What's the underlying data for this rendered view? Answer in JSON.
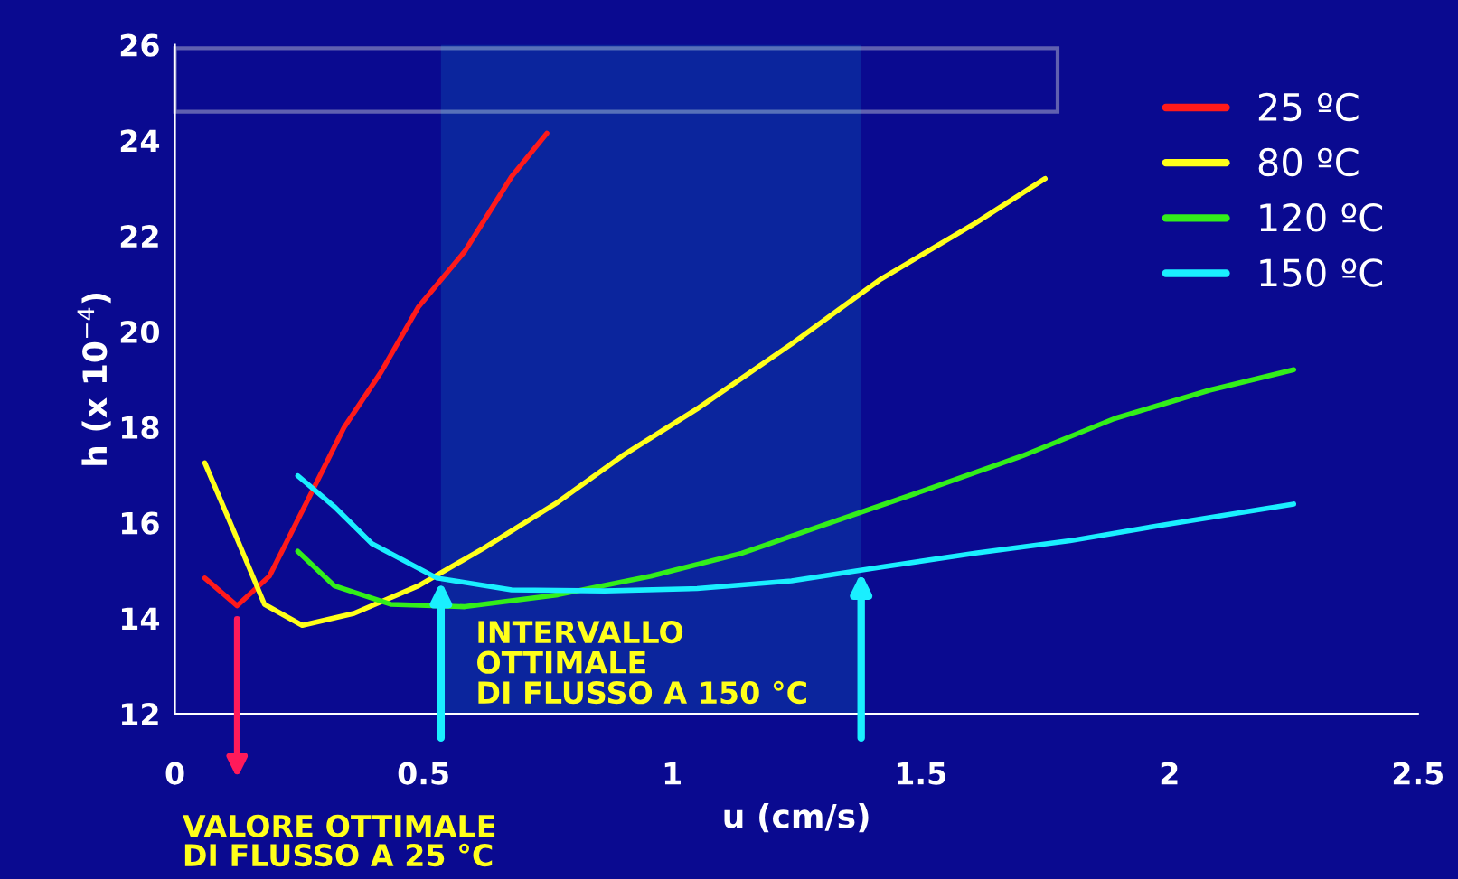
{
  "chart_data": {
    "type": "line",
    "xlabel": "u (cm/s)",
    "ylabel": "h (x 10$^{−4}$)",
    "xlim": [
      0,
      2.5
    ],
    "xticks": [
      0,
      0.5,
      1,
      1.5,
      2,
      2.5
    ],
    "ylim": [
      12,
      26
    ],
    "yticks": [
      12,
      14,
      16,
      18,
      20,
      22,
      24,
      26
    ],
    "grid": false,
    "legend": "top right",
    "marker": "none",
    "line_style": "solid",
    "series": [
      {
        "name": "25 ºC",
        "color": "#ff1a1a",
        "x": [
          0.06,
          0.125,
          0.19,
          0.265,
          0.34,
          0.415,
          0.49,
          0.583,
          0.677,
          0.748
        ],
        "values": [
          14.84,
          14.26,
          14.88,
          16.43,
          17.99,
          19.16,
          20.52,
          21.68,
          23.24,
          24.15
        ]
      },
      {
        "name": "80 ºC",
        "color": "#ffff1a",
        "x": [
          0.06,
          0.125,
          0.18,
          0.256,
          0.36,
          0.49,
          0.62,
          0.77,
          0.9,
          1.05,
          1.24,
          1.42,
          1.61,
          1.75
        ],
        "values": [
          17.25,
          15.66,
          14.29,
          13.85,
          14.1,
          14.68,
          15.46,
          16.43,
          17.4,
          18.38,
          19.74,
          21.1,
          22.27,
          23.2
        ]
      },
      {
        "name": "120 ºC",
        "color": "#33ee1a",
        "x": [
          0.247,
          0.32,
          0.434,
          0.583,
          0.77,
          0.957,
          1.14,
          1.33,
          1.52,
          1.705,
          1.89,
          2.08,
          2.25
        ],
        "values": [
          15.4,
          14.68,
          14.29,
          14.24,
          14.49,
          14.88,
          15.36,
          16.04,
          16.72,
          17.4,
          18.18,
          18.77,
          19.2
        ]
      },
      {
        "name": "150 ºC",
        "color": "#1aefff",
        "x": [
          0.247,
          0.32,
          0.396,
          0.527,
          0.677,
          0.864,
          1.05,
          1.24,
          1.42,
          1.61,
          1.8,
          1.986,
          2.25
        ],
        "values": [
          16.98,
          16.34,
          15.56,
          14.84,
          14.59,
          14.57,
          14.62,
          14.78,
          15.07,
          15.36,
          15.62,
          15.95,
          16.39
        ]
      }
    ],
    "annotations": [
      "VALORE OTTIMALE\nDI FLUSSO A 25 °C"
    ],
    "bands": [
      {
        "axis": "x",
        "from": 0.535,
        "to": 1.38,
        "label": "INTERVALLO\nOTTIMALE\nDI FLUSSO A 150 °C",
        "color": "#1aefff"
      }
    ]
  }
}
